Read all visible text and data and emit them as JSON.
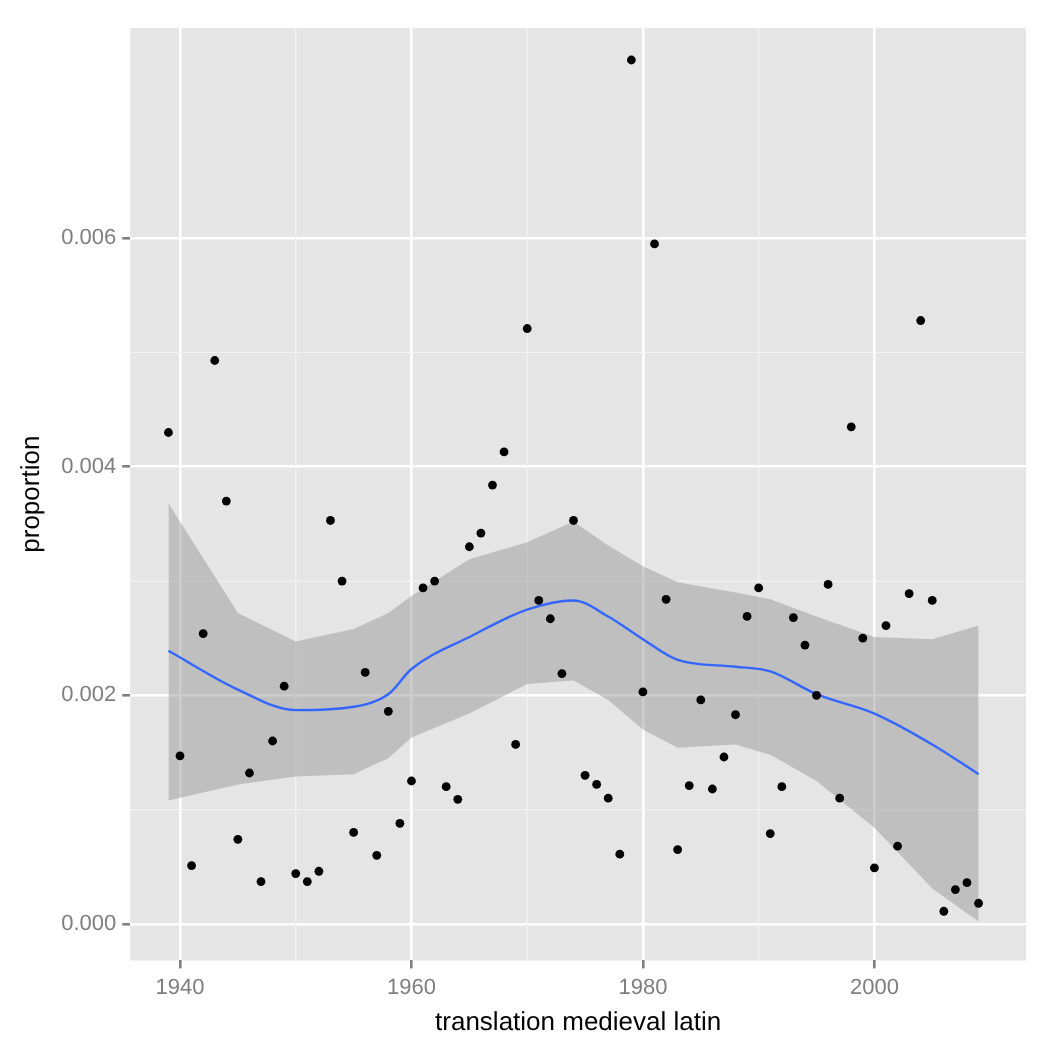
{
  "chart_data": {
    "type": "scatter",
    "xlabel": "translation medieval latin",
    "ylabel": "proportion",
    "xlim": [
      1935.7,
      2013.1
    ],
    "ylim": [
      -0.00032,
      0.00784
    ],
    "xticks": [
      1940,
      1960,
      1980,
      2000
    ],
    "yticks": [
      {
        "value": 0,
        "label": "0.000"
      },
      {
        "value": 0.002,
        "label": "0.002"
      },
      {
        "value": 0.004,
        "label": "0.004"
      },
      {
        "value": 0.006,
        "label": "0.006"
      }
    ],
    "grid": true,
    "legend": false,
    "series": [
      {
        "color": "#000000",
        "marker": "circle",
        "x": [
          1939,
          1940,
          1941,
          1942,
          1943,
          1944,
          1945,
          1946,
          1947,
          1948,
          1949,
          1950,
          1951,
          1952,
          1953,
          1954,
          1955,
          1956,
          1957,
          1958,
          1959,
          1960,
          1961,
          1962,
          1963,
          1964,
          1965,
          1966,
          1967,
          1968,
          1969,
          1970,
          1971,
          1972,
          1973,
          1974,
          1975,
          1976,
          1977,
          1978,
          1979,
          1980,
          1981,
          1982,
          1983,
          1984,
          1985,
          1986,
          1987,
          1988,
          1989,
          1990,
          1991,
          1992,
          1993,
          1994,
          1995,
          1996,
          1997,
          1998,
          1999,
          2000,
          2001,
          2002,
          2003,
          2004,
          2005,
          2006,
          2007,
          2008,
          2009
        ],
        "values": [
          0.0043,
          0.00147,
          0.00051,
          0.00254,
          0.00493,
          0.0037,
          0.00074,
          0.00132,
          0.00037,
          0.0016,
          0.00208,
          0.00044,
          0.00037,
          0.00046,
          0.00353,
          0.003,
          0.0008,
          0.0022,
          0.0006,
          0.00186,
          0.00088,
          0.00125,
          0.00294,
          0.003,
          0.0012,
          0.00109,
          0.0033,
          0.00342,
          0.00384,
          0.00413,
          0.00157,
          0.00521,
          0.00283,
          0.00267,
          0.00219,
          0.00353,
          0.0013,
          0.00122,
          0.0011,
          0.00061,
          0.00756,
          0.00203,
          0.00595,
          0.00284,
          0.00065,
          0.00121,
          0.00196,
          0.00118,
          0.00146,
          0.00183,
          0.00269,
          0.00294,
          0.00079,
          0.0012,
          0.00268,
          0.00244,
          0.002,
          0.00297,
          0.0011,
          0.00435,
          0.0025,
          0.00049,
          0.00261,
          0.00068,
          0.00289,
          0.00528,
          0.00283,
          0.00011,
          0.0003,
          0.00036,
          0.00018
        ]
      },
      {
        "type": "line",
        "color": "#3366ff",
        "marker": "none",
        "line_style": "solid",
        "x": [
          1939,
          1945,
          1950,
          1955,
          1958,
          1960,
          1965,
          1970,
          1974,
          1977,
          1980,
          1983,
          1988,
          1991,
          1995,
          2000,
          2005,
          2009
        ],
        "values": [
          0.00239,
          0.00205,
          0.00187,
          0.0019,
          0.00201,
          0.00223,
          0.00251,
          0.00275,
          0.00283,
          0.00269,
          0.00249,
          0.00231,
          0.00225,
          0.00221,
          0.00201,
          0.00184,
          0.00157,
          0.00131
        ],
        "lower": [
          0.00108,
          0.00122,
          0.00129,
          0.00131,
          0.00145,
          0.00163,
          0.00184,
          0.0021,
          0.00213,
          0.00196,
          0.0017,
          0.00154,
          0.00157,
          0.00148,
          0.00125,
          0.00084,
          0.00031,
          2e-05
        ],
        "upper": [
          0.00368,
          0.00272,
          0.00247,
          0.00258,
          0.00272,
          0.00287,
          0.00319,
          0.00334,
          0.00352,
          0.00331,
          0.00313,
          0.00299,
          0.0029,
          0.00284,
          0.00269,
          0.00251,
          0.00249,
          0.00261
        ]
      }
    ]
  }
}
